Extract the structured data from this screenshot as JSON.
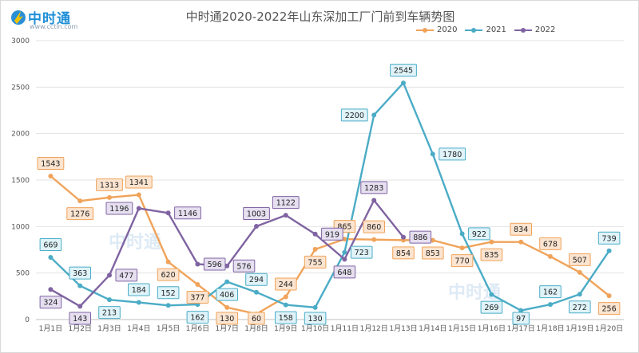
{
  "header": {
    "logo_text": "中时通",
    "logo_url": "www.cctin.com",
    "title": "中时通2020-2022年山东深加工厂门前到车辆势图"
  },
  "watermarks": [
    "中时通",
    "中时通"
  ],
  "colors": {
    "2020": "#f0a35a",
    "2021": "#4bacc6",
    "2022": "#8064a2"
  },
  "chart_data": {
    "type": "line",
    "title": "中时通2020-2022年山东深加工厂门前到车辆势图",
    "xlabel": "",
    "ylabel": "",
    "ylim": [
      0,
      3000
    ],
    "yticks": [
      0,
      500,
      1000,
      1500,
      2000,
      2500,
      3000
    ],
    "grid": true,
    "legend_position": "top-right",
    "categories": [
      "1月1日",
      "1月2日",
      "1月3日",
      "1月4日",
      "1月5日",
      "1月6日",
      "1月7日",
      "1月8日",
      "1月9日",
      "1月10日",
      "1月11日",
      "1月12日",
      "1月13日",
      "1月14日",
      "1月15日",
      "1月16日",
      "1月17日",
      "1月18日",
      "1月19日",
      "1月20日"
    ],
    "series": [
      {
        "name": "2020",
        "color": "#f0a35a",
        "label_bg": "#fbe4d0",
        "label_border": "#f0a35a",
        "values": [
          1543,
          1276,
          1313,
          1341,
          620,
          377,
          130,
          60,
          244,
          755,
          865,
          860,
          854,
          853,
          770,
          835,
          834,
          678,
          507,
          256
        ],
        "label_offsets_dir": [
          "up",
          "down",
          "up",
          "up",
          "down",
          "down",
          "down",
          "down",
          "up",
          "down",
          "up",
          "up",
          "down",
          "down",
          "down",
          "down",
          "up",
          "up",
          "up",
          "down"
        ]
      },
      {
        "name": "2021",
        "color": "#4bacc6",
        "label_bg": "#dff3f9",
        "label_border": "#4bacc6",
        "values": [
          669,
          363,
          213,
          184,
          152,
          162,
          406,
          294,
          158,
          130,
          723,
          2200,
          2545,
          1780,
          922,
          269,
          97,
          162,
          272,
          739
        ],
        "label_offsets_dir": [
          "up",
          "up",
          "down",
          "up",
          "up",
          "down",
          "down",
          "up",
          "down",
          "down",
          "right",
          "left",
          "up",
          "right",
          "right",
          "down",
          "down",
          "up",
          "down",
          "up"
        ]
      },
      {
        "name": "2022",
        "color": "#8064a2",
        "label_bg": "#e5dff0",
        "label_border": "#8064a2",
        "values": [
          324,
          143,
          477,
          1196,
          1146,
          596,
          576,
          1003,
          1122,
          919,
          648,
          1283,
          886,
          null,
          null,
          null,
          null,
          null,
          null,
          null
        ],
        "label_offsets_dir": [
          "down",
          "down",
          "right",
          "left",
          "right",
          "right",
          "right",
          "up",
          "up",
          "right",
          "down",
          "up",
          "right",
          "up",
          "up",
          "up",
          "up",
          "up",
          "up",
          "up"
        ]
      }
    ]
  }
}
